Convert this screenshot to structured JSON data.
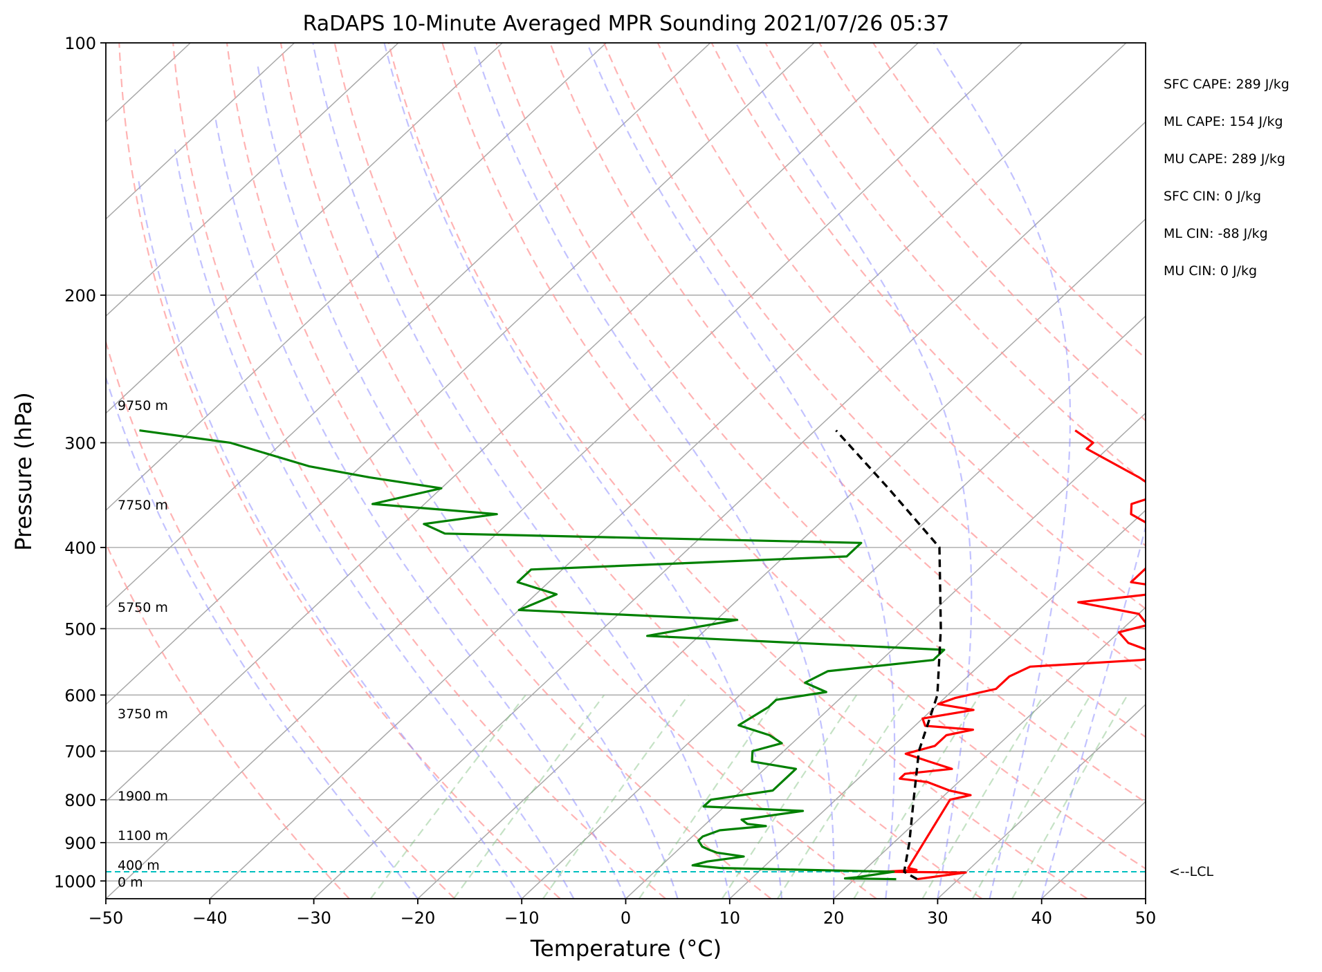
{
  "chart_data": {
    "type": "skew-t",
    "title": "RaDAPS 10-Minute Averaged MPR Sounding 2021/07/26 05:37",
    "xlabel": "Temperature (°C)",
    "ylabel": "Pressure (hPa)",
    "xlim": [
      -50,
      50
    ],
    "ylim": [
      1050,
      100
    ],
    "x_ticks": [
      -50,
      -40,
      -30,
      -20,
      -10,
      0,
      10,
      20,
      30,
      40,
      50
    ],
    "x_tick_labels": [
      "−50",
      "−40",
      "−30",
      "−20",
      "−10",
      "0",
      "10",
      "20",
      "30",
      "40",
      "50"
    ],
    "y_ticks": [
      1000,
      900,
      800,
      700,
      600,
      500,
      400,
      300,
      200,
      100
    ],
    "y_tick_labels": [
      "1000",
      "900",
      "800",
      "700",
      "600",
      "500",
      "400",
      "300",
      "200",
      "100"
    ],
    "grid": true,
    "isotherms": [
      -150,
      -140,
      -130,
      -120,
      -110,
      -100,
      -90,
      -80,
      -70,
      -60,
      -50,
      -40,
      -30,
      -20,
      -10,
      0,
      10,
      20,
      30,
      40,
      50
    ],
    "dry_adiabats_theta_C": [
      -30,
      -20,
      -10,
      0,
      10,
      20,
      30,
      40,
      50,
      60,
      70,
      80,
      90,
      100,
      110,
      120,
      130
    ],
    "moist_adiabats_start_C": [
      -20,
      -10,
      -5,
      0,
      5,
      10,
      15,
      20,
      25,
      30,
      35,
      40
    ],
    "mixing_ratio_lines_gkg": [
      0.5,
      1,
      2,
      4,
      7,
      10,
      16,
      24,
      32,
      40
    ],
    "series": [
      {
        "name": "Temperature",
        "color": "#ff0000",
        "points": [
          [
            26,
            995
          ],
          [
            30,
            977
          ],
          [
            22,
            975
          ],
          [
            25,
            970
          ],
          [
            24,
            965
          ],
          [
            21,
            800
          ],
          [
            22.5,
            790
          ],
          [
            20,
            780
          ],
          [
            17,
            762
          ],
          [
            14,
            755
          ],
          [
            14,
            745
          ],
          [
            18,
            735
          ],
          [
            15,
            720
          ],
          [
            12,
            705
          ],
          [
            14,
            690
          ],
          [
            14,
            670
          ],
          [
            16,
            660
          ],
          [
            11,
            653
          ],
          [
            10,
            640
          ],
          [
            14,
            625
          ],
          [
            10,
            615
          ],
          [
            11,
            605
          ],
          [
            14,
            590
          ],
          [
            14,
            570
          ],
          [
            15,
            555
          ],
          [
            25,
            545
          ],
          [
            27,
            540
          ],
          [
            22,
            520
          ],
          [
            20,
            505
          ],
          [
            22,
            495
          ],
          [
            20,
            480
          ],
          [
            13,
            465
          ],
          [
            22,
            450
          ],
          [
            16,
            440
          ],
          [
            16,
            425
          ],
          [
            16,
            410
          ],
          [
            14,
            395
          ],
          [
            13,
            380
          ],
          [
            9,
            365
          ],
          [
            8,
            355
          ],
          [
            10,
            345
          ],
          [
            6,
            330
          ],
          [
            -2,
            305
          ],
          [
            -2,
            300
          ],
          [
            -5,
            290
          ]
        ]
      },
      {
        "name": "Dewpoint",
        "color": "#008000",
        "points": [
          [
            24,
            995
          ],
          [
            19,
            993
          ],
          [
            20,
            990
          ],
          [
            23,
            975
          ],
          [
            6,
            965
          ],
          [
            3,
            958
          ],
          [
            4,
            948
          ],
          [
            7,
            935
          ],
          [
            4,
            925
          ],
          [
            3,
            918
          ],
          [
            2,
            910
          ],
          [
            1,
            895
          ],
          [
            1,
            885
          ],
          [
            2,
            870
          ],
          [
            6,
            860
          ],
          [
            4,
            855
          ],
          [
            3,
            845
          ],
          [
            8,
            825
          ],
          [
            -2,
            815
          ],
          [
            -2,
            800
          ],
          [
            3,
            780
          ],
          [
            3,
            745
          ],
          [
            3,
            735
          ],
          [
            -2,
            720
          ],
          [
            -3,
            700
          ],
          [
            -1,
            685
          ],
          [
            -3,
            670
          ],
          [
            -7,
            652
          ],
          [
            -6,
            620
          ],
          [
            -6,
            608
          ],
          [
            -2,
            595
          ],
          [
            -5,
            580
          ],
          [
            -4,
            562
          ],
          [
            5,
            545
          ],
          [
            5,
            530
          ],
          [
            -25,
            510
          ],
          [
            -18,
            488
          ],
          [
            -40,
            475
          ],
          [
            -38,
            455
          ],
          [
            -43,
            440
          ],
          [
            -43,
            425
          ],
          [
            -14,
            410
          ],
          [
            -14,
            395
          ],
          [
            -55,
            385
          ],
          [
            -58,
            375
          ],
          [
            -52,
            365
          ],
          [
            -65,
            355
          ],
          [
            -60,
            340
          ],
          [
            -68,
            330
          ],
          [
            -75,
            320
          ],
          [
            -85,
            300
          ],
          [
            -95,
            290
          ]
        ]
      },
      {
        "name": "Parcel",
        "color": "#000000",
        "style": "dashed",
        "points": [
          [
            26,
            995
          ],
          [
            24,
            975
          ],
          [
            21.5,
            900
          ],
          [
            17.5,
            800
          ],
          [
            13,
            700
          ],
          [
            9,
            600
          ],
          [
            2.5,
            500
          ],
          [
            -6,
            400
          ],
          [
            -17,
            340
          ],
          [
            -28,
            290
          ]
        ]
      }
    ],
    "lcl": {
      "pressure": 975,
      "label": "<--LCL",
      "color": "#00bfbf"
    },
    "height_labels": [
      {
        "text": "0 m",
        "pressure": 1000
      },
      {
        "text": "400 m",
        "pressure": 955
      },
      {
        "text": "1100 m",
        "pressure": 880
      },
      {
        "text": "1900 m",
        "pressure": 790
      },
      {
        "text": "3750 m",
        "pressure": 630
      },
      {
        "text": "5750 m",
        "pressure": 470
      },
      {
        "text": "7750 m",
        "pressure": 355
      },
      {
        "text": "9750 m",
        "pressure": 270
      }
    ],
    "annotations": [
      "SFC CAPE: 289 J/kg",
      "ML CAPE: 154 J/kg",
      "MU CAPE: 289 J/kg",
      "SFC CIN: 0 J/kg",
      "ML CIN: -88 J/kg",
      "MU CIN: 0 J/kg"
    ]
  }
}
